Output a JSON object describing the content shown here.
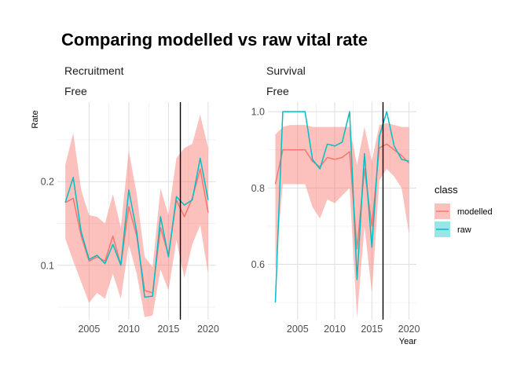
{
  "chart_data": {
    "type": "line",
    "title": "Comparing modelled vs raw vital rate",
    "ylabel": "Rate",
    "xlabel": "Year",
    "legend": {
      "title": "class",
      "position": "right",
      "entries": [
        {
          "name": "modelled",
          "color": "#F8766D"
        },
        {
          "name": "raw",
          "color": "#00BFC4"
        }
      ]
    },
    "vline_year": 2016.5,
    "grid": true,
    "panels": [
      {
        "strip": [
          "Recruitment",
          "Free"
        ],
        "xlim": [
          2001,
          2021
        ],
        "ylim": [
          0.035,
          0.295
        ],
        "x_ticks": [
          2005,
          2010,
          2015,
          2020
        ],
        "y_ticks": [
          0.1,
          0.2
        ],
        "y_tick_labels": [
          "0.1",
          "0.2"
        ],
        "x": [
          2002,
          2003,
          2004,
          2005,
          2006,
          2007,
          2008,
          2009,
          2010,
          2011,
          2012,
          2013,
          2014,
          2015,
          2016,
          2017,
          2018,
          2019,
          2020
        ],
        "series": [
          {
            "name": "modelled",
            "color": "#F8766D",
            "values": [
              0.175,
              0.18,
              0.135,
              0.105,
              0.11,
              0.105,
              0.135,
              0.1,
              0.17,
              0.135,
              0.07,
              0.067,
              0.145,
              0.112,
              0.178,
              0.158,
              0.18,
              0.215,
              0.163
            ],
            "lower": [
              0.132,
              0.105,
              0.08,
              0.055,
              0.067,
              0.06,
              0.09,
              0.06,
              0.125,
              0.09,
              0.038,
              0.04,
              0.095,
              0.07,
              0.13,
              0.085,
              0.125,
              0.148,
              0.09
            ],
            "upper": [
              0.22,
              0.258,
              0.19,
              0.16,
              0.158,
              0.15,
              0.185,
              0.145,
              0.237,
              0.185,
              0.11,
              0.098,
              0.192,
              0.16,
              0.228,
              0.24,
              0.245,
              0.28,
              0.24
            ]
          },
          {
            "name": "raw",
            "color": "#00BFC4",
            "values": [
              0.175,
              0.205,
              0.14,
              0.107,
              0.112,
              0.102,
              0.125,
              0.1,
              0.19,
              0.14,
              0.062,
              0.063,
              0.158,
              0.11,
              0.182,
              0.172,
              0.178,
              0.228,
              0.178
            ]
          }
        ]
      },
      {
        "strip": [
          "Survival",
          "Free"
        ],
        "xlim": [
          2001,
          2021
        ],
        "ylim": [
          0.455,
          1.025
        ],
        "x_ticks": [
          2005,
          2010,
          2015,
          2020
        ],
        "y_ticks": [
          0.6,
          0.8,
          1.0
        ],
        "y_tick_labels": [
          "0.6",
          "0.8",
          "1.0"
        ],
        "x": [
          2002,
          2003,
          2004,
          2005,
          2006,
          2007,
          2008,
          2009,
          2010,
          2011,
          2012,
          2013,
          2014,
          2015,
          2016,
          2017,
          2018,
          2019,
          2020
        ],
        "series": [
          {
            "name": "modelled",
            "color": "#F8766D",
            "values": [
              0.81,
              0.9,
              0.9,
              0.9,
              0.9,
              0.87,
              0.855,
              0.88,
              0.875,
              0.88,
              0.895,
              0.64,
              0.85,
              0.7,
              0.905,
              0.915,
              0.9,
              0.885,
              0.865
            ],
            "lower": [
              0.585,
              0.81,
              0.81,
              0.81,
              0.81,
              0.75,
              0.72,
              0.77,
              0.76,
              0.78,
              0.8,
              0.46,
              0.7,
              0.525,
              0.82,
              0.85,
              0.83,
              0.8,
              0.68
            ],
            "upper": [
              0.94,
              0.96,
              0.965,
              0.965,
              0.965,
              0.96,
              0.96,
              0.96,
              0.96,
              0.96,
              0.96,
              0.86,
              0.96,
              0.87,
              0.965,
              0.97,
              0.965,
              0.96,
              0.96
            ]
          },
          {
            "name": "raw",
            "color": "#00BFC4",
            "values": [
              0.5,
              1.0,
              1.0,
              1.0,
              1.0,
              0.875,
              0.85,
              0.915,
              0.91,
              0.92,
              1.0,
              0.56,
              0.89,
              0.645,
              0.935,
              1.0,
              0.91,
              0.875,
              0.87
            ]
          }
        ]
      }
    ]
  }
}
